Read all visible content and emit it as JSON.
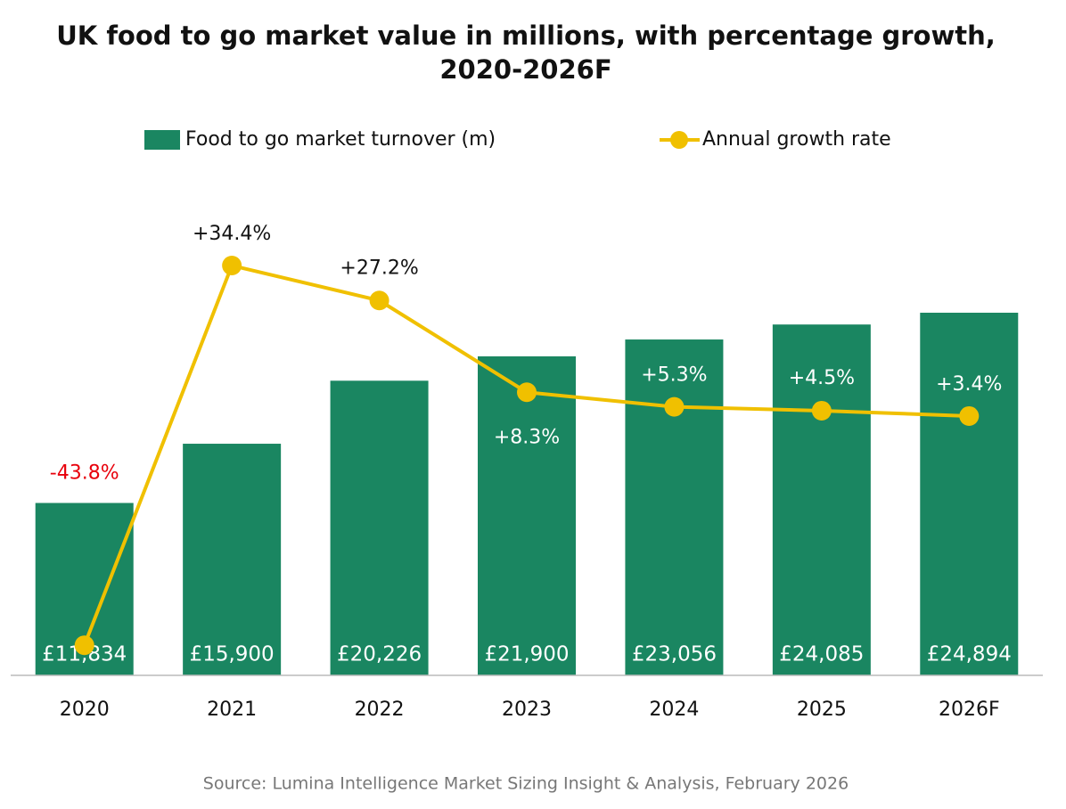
{
  "chart_data": {
    "type": "bar_line",
    "title": "UK food to go market value in millions, with percentage growth,",
    "subtitle": "2020-2026F",
    "categories": [
      "2020",
      "2021",
      "2022",
      "2023",
      "2024",
      "2025",
      "2026F"
    ],
    "series": [
      {
        "name": "Food to go market turnover (m)",
        "type": "bar",
        "color": "#1a8661",
        "values": [
          11834,
          15900,
          20226,
          21900,
          23056,
          24085,
          24894
        ],
        "value_labels": [
          "£11,834",
          "£15,900",
          "£20,226",
          "£21,900",
          "£23,056",
          "£24,085",
          "£24,894"
        ]
      },
      {
        "name": "Annual growth rate",
        "type": "line",
        "axis": "y2",
        "color": "#f0c000",
        "values": [
          -43.8,
          34.4,
          27.2,
          8.3,
          5.3,
          4.5,
          3.4
        ],
        "value_labels": [
          "-43.8%",
          "+34.4%",
          "+27.2%",
          "+8.3%",
          "+5.3%",
          "+4.5%",
          "+3.4%"
        ]
      }
    ],
    "ylim": [
      0,
      30000
    ],
    "y2lim": [
      -50,
      40
    ],
    "negative_label_color": "#e8000b",
    "source": "Source: Lumina Intelligence Market Sizing Insight & Analysis,  February 2026"
  }
}
